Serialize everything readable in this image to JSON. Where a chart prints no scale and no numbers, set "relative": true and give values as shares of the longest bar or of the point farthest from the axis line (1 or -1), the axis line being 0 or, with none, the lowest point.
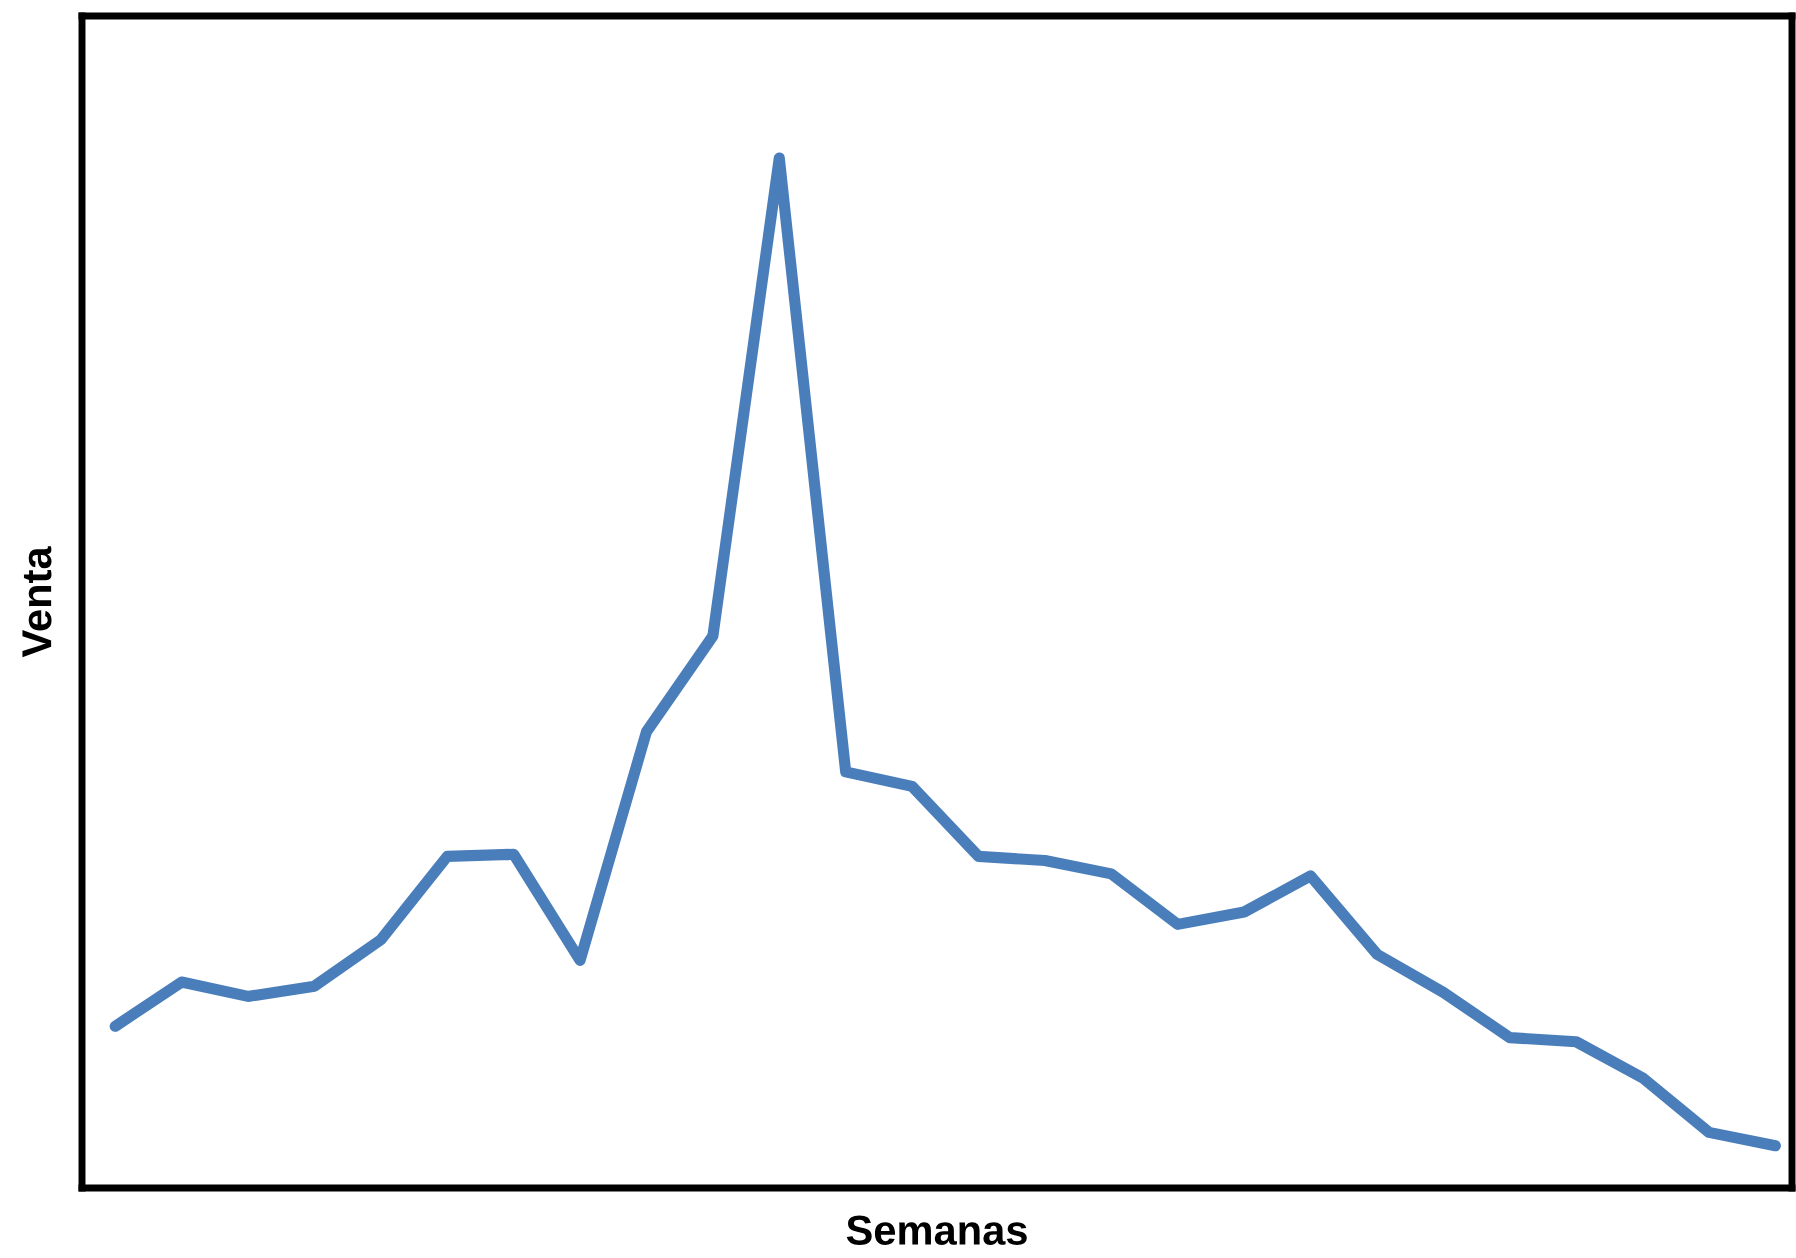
{
  "chart_data": {
    "type": "line",
    "relative": true,
    "xlabel": "Semanas",
    "ylabel": "Venta",
    "categories": [
      null,
      null,
      null,
      null,
      null,
      null,
      null,
      null,
      null,
      null,
      null,
      null,
      null,
      null,
      null,
      null,
      null,
      null,
      null,
      null,
      null,
      null,
      null,
      null,
      null,
      null
    ],
    "series": [
      {
        "color": "#4a7ebb",
        "values": [
          0.157,
          0.2,
          0.186,
          0.196,
          0.241,
          0.322,
          0.324,
          0.221,
          0.443,
          0.536,
          1,
          0.404,
          0.39,
          0.322,
          0.318,
          0.305,
          0.256,
          0.268,
          0.303,
          0.227,
          0.19,
          0.146,
          0.142,
          0.107,
          0.054,
          0.041
        ]
      }
    ],
    "grid": false,
    "legend": false,
    "marker": "none",
    "line_style": "solid"
  }
}
